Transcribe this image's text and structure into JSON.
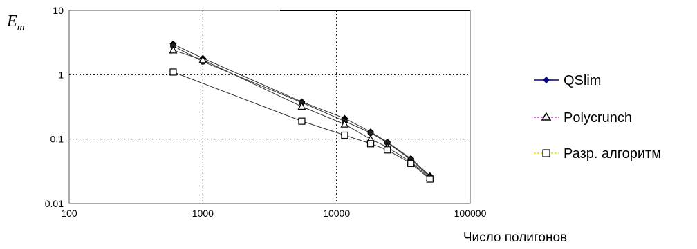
{
  "chart_data": {
    "type": "line",
    "title": "",
    "ylabel": "E",
    "ylabel_sub": "m",
    "xlabel": "Число полигонов",
    "xscale": "log",
    "yscale": "log",
    "xlim": [
      100,
      100000
    ],
    "ylim": [
      0.01,
      10
    ],
    "x_ticks": [
      100,
      1000,
      10000,
      100000
    ],
    "x_tick_labels": [
      "100",
      "1000",
      "10000",
      "100000"
    ],
    "y_ticks": [
      0.01,
      0.1,
      1,
      10
    ],
    "y_tick_labels": [
      "0.01",
      "0.1",
      "1",
      "10"
    ],
    "grid": "dotted at decades",
    "legend_position": "right",
    "series": [
      {
        "name": "QSlim",
        "marker": "diamond",
        "color": "#000080",
        "x": [
          600,
          1000,
          5500,
          11500,
          18000,
          24000,
          36000,
          50000
        ],
        "y": [
          3.0,
          1.8,
          0.38,
          0.21,
          0.13,
          0.09,
          0.05,
          0.027
        ]
      },
      {
        "name": "",
        "marker": "circle",
        "color": "#000000",
        "x": [
          600,
          1000,
          5500,
          11500,
          18000,
          24000,
          36000,
          50000
        ],
        "y": [
          2.8,
          1.6,
          0.37,
          0.19,
          0.125,
          0.088,
          0.048,
          0.026
        ]
      },
      {
        "name": "Polycrunch",
        "marker": "triangle",
        "color": "#cc33cc",
        "x": [
          600,
          1000,
          5500,
          11500,
          18000,
          24000,
          36000,
          50000
        ],
        "y": [
          2.4,
          1.7,
          0.32,
          0.17,
          0.1,
          0.075,
          0.044,
          0.025
        ]
      },
      {
        "name": "Разр. алгоритм",
        "marker": "square",
        "color": "#e6e600",
        "x": [
          600,
          5500,
          11500,
          18000,
          24000,
          36000,
          50000
        ],
        "y": [
          1.1,
          0.19,
          0.115,
          0.085,
          0.068,
          0.042,
          0.024
        ]
      }
    ]
  }
}
